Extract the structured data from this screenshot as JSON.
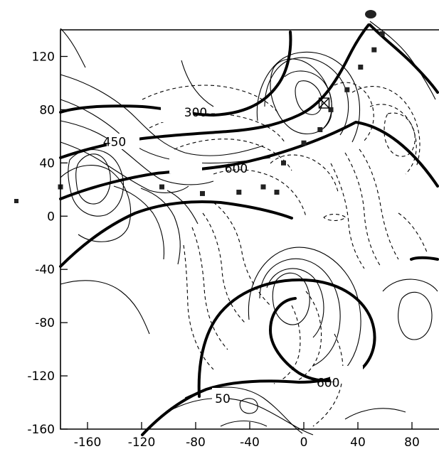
{
  "chart_data": {
    "type": "contour",
    "title": "",
    "xlabel": "",
    "ylabel": "",
    "xlim": [
      -180,
      100
    ],
    "ylim": [
      -160,
      140
    ],
    "x_ticks": [
      -160,
      -120,
      -80,
      -40,
      0,
      40,
      80
    ],
    "y_ticks": [
      -160,
      -120,
      -80,
      -40,
      0,
      40,
      80,
      120
    ],
    "grid": false,
    "contour_labels": [
      {
        "text": "300",
        "x": -80,
        "y": 78
      },
      {
        "text": "450",
        "x": -140,
        "y": 56
      },
      {
        "text": "600",
        "x": -50,
        "y": 36
      },
      {
        "text": "600",
        "x": 18,
        "y": -125
      },
      {
        "text": "50",
        "x": -60,
        "y": -137
      }
    ],
    "stations": [
      {
        "x": -30,
        "y": 22
      },
      {
        "x": -20,
        "y": 18
      },
      {
        "x": -48,
        "y": 18
      },
      {
        "x": -75,
        "y": 17
      },
      {
        "x": -105,
        "y": 22
      },
      {
        "x": -180,
        "y": 22
      },
      {
        "x": 0,
        "y": 55
      },
      {
        "x": 12,
        "y": 65
      },
      {
        "x": 32,
        "y": 95
      },
      {
        "x": 42,
        "y": 112
      },
      {
        "x": 52,
        "y": 125
      },
      {
        "x": 58,
        "y": 137
      },
      {
        "x": -15,
        "y": 40
      },
      {
        "x": 20,
        "y": 80
      }
    ],
    "boxed_station": {
      "x": 15,
      "y": 85
    }
  }
}
